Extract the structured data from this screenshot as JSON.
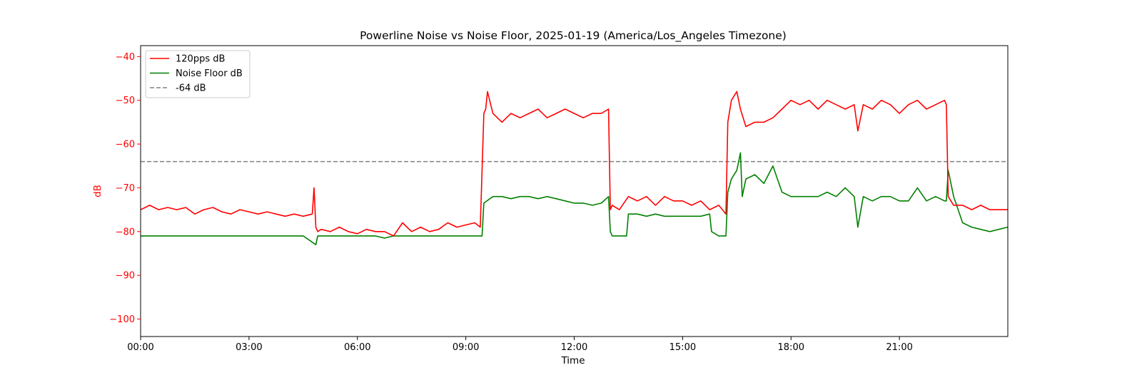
{
  "chart_data": {
    "type": "line",
    "title": "Powerline Noise vs Noise Floor, 2025-01-19 (America/Los_Angeles Timezone)",
    "xlabel": "Time",
    "ylabel": "dB",
    "x_unit": "hours",
    "xlim": [
      0,
      24
    ],
    "ylim": [
      -104,
      -37.5
    ],
    "xticks": [
      {
        "value": 0,
        "label": "00:00"
      },
      {
        "value": 3,
        "label": "03:00"
      },
      {
        "value": 6,
        "label": "06:00"
      },
      {
        "value": 9,
        "label": "09:00"
      },
      {
        "value": 12,
        "label": "12:00"
      },
      {
        "value": 15,
        "label": "15:00"
      },
      {
        "value": 18,
        "label": "18:00"
      },
      {
        "value": 21,
        "label": "21:00"
      }
    ],
    "yticks": [
      {
        "value": -40,
        "label": "−40"
      },
      {
        "value": -50,
        "label": "−50"
      },
      {
        "value": -60,
        "label": "−60"
      },
      {
        "value": -70,
        "label": "−70"
      },
      {
        "value": -80,
        "label": "−80"
      },
      {
        "value": -90,
        "label": "−90"
      },
      {
        "value": -100,
        "label": "−100"
      }
    ],
    "legend_position": "top-left",
    "grid": false,
    "series": [
      {
        "name": "120pps dB",
        "color": "#ff0000",
        "x": [
          0,
          0.25,
          0.5,
          0.75,
          1.0,
          1.25,
          1.5,
          1.75,
          2.0,
          2.25,
          2.5,
          2.75,
          3.0,
          3.25,
          3.5,
          3.75,
          4.0,
          4.25,
          4.5,
          4.75,
          4.8,
          4.85,
          4.9,
          5.0,
          5.25,
          5.5,
          5.75,
          6.0,
          6.25,
          6.5,
          6.75,
          7.0,
          7.25,
          7.5,
          7.75,
          8.0,
          8.25,
          8.5,
          8.75,
          9.0,
          9.25,
          9.4,
          9.5,
          9.55,
          9.6,
          9.75,
          10.0,
          10.25,
          10.5,
          10.75,
          11.0,
          11.25,
          11.5,
          11.75,
          12.0,
          12.25,
          12.5,
          12.75,
          12.95,
          13.0,
          13.05,
          13.25,
          13.5,
          13.75,
          14.0,
          14.25,
          14.5,
          14.75,
          15.0,
          15.25,
          15.5,
          15.75,
          16.0,
          16.2,
          16.25,
          16.35,
          16.5,
          16.6,
          16.75,
          17.0,
          17.25,
          17.5,
          17.75,
          18.0,
          18.25,
          18.5,
          18.75,
          19.0,
          19.25,
          19.5,
          19.75,
          19.85,
          20.0,
          20.25,
          20.5,
          20.75,
          21.0,
          21.25,
          21.5,
          21.75,
          22.0,
          22.25,
          22.3,
          22.35,
          22.5,
          22.75,
          23.0,
          23.25,
          23.5,
          23.75,
          24.0
        ],
        "y": [
          -75,
          -74,
          -75,
          -74.5,
          -75,
          -74.5,
          -76,
          -75,
          -74.5,
          -75.5,
          -76,
          -75,
          -75.5,
          -76,
          -75.5,
          -76,
          -76.5,
          -76,
          -76.5,
          -76,
          -70,
          -79,
          -80,
          -79.5,
          -80,
          -79,
          -80,
          -80.5,
          -79.5,
          -80,
          -80,
          -81,
          -78,
          -80,
          -79,
          -80,
          -79.5,
          -78,
          -79,
          -78.5,
          -78,
          -79,
          -53,
          -52,
          -48,
          -53,
          -55,
          -53,
          -54,
          -53,
          -52,
          -54,
          -53,
          -52,
          -53,
          -54,
          -53,
          -53,
          -52,
          -75,
          -74,
          -75,
          -72,
          -73,
          -72,
          -74,
          -72,
          -73,
          -73,
          -74,
          -73,
          -75,
          -74,
          -76,
          -55,
          -50,
          -48,
          -52,
          -56,
          -55,
          -55,
          -54,
          -52,
          -50,
          -51,
          -50,
          -52,
          -50,
          -51,
          -52,
          -51,
          -57,
          -51,
          -52,
          -50,
          -51,
          -53,
          -51,
          -50,
          -52,
          -51,
          -50,
          -51,
          -72,
          -74,
          -74,
          -75,
          -74,
          -75,
          -75,
          -75
        ]
      },
      {
        "name": "Noise Floor dB",
        "color": "#008000",
        "x": [
          0,
          0.25,
          0.5,
          0.75,
          1.0,
          1.5,
          2.0,
          2.5,
          3.0,
          3.5,
          4.0,
          4.5,
          4.85,
          4.9,
          5.0,
          5.5,
          6.0,
          6.5,
          6.75,
          7.0,
          7.25,
          7.5,
          7.75,
          8.0,
          8.25,
          8.5,
          8.75,
          9.0,
          9.25,
          9.45,
          9.5,
          9.75,
          10.0,
          10.25,
          10.5,
          10.75,
          11.0,
          11.25,
          11.5,
          11.75,
          12.0,
          12.25,
          12.5,
          12.75,
          12.95,
          13.0,
          13.05,
          13.25,
          13.45,
          13.5,
          13.75,
          14.0,
          14.25,
          14.5,
          14.75,
          15.0,
          15.25,
          15.5,
          15.75,
          15.8,
          16.0,
          16.2,
          16.25,
          16.35,
          16.5,
          16.6,
          16.65,
          16.75,
          17.0,
          17.25,
          17.5,
          17.75,
          18.0,
          18.25,
          18.5,
          18.75,
          19.0,
          19.25,
          19.5,
          19.75,
          19.85,
          20.0,
          20.25,
          20.5,
          20.75,
          21.0,
          21.25,
          21.5,
          21.75,
          22.0,
          22.25,
          22.3,
          22.35,
          22.5,
          22.75,
          23.0,
          23.25,
          23.5,
          23.75,
          24.0
        ],
        "y": [
          -81,
          -81,
          -81,
          -81,
          -81,
          -81,
          -81,
          -81,
          -81,
          -81,
          -81,
          -81,
          -83,
          -81,
          -81,
          -81,
          -81,
          -81,
          -81.5,
          -81,
          -81,
          -81,
          -81,
          -81,
          -81,
          -81,
          -81,
          -81,
          -81,
          -81,
          -73.5,
          -72,
          -72,
          -72.5,
          -72,
          -72,
          -72.5,
          -72,
          -72.5,
          -73,
          -73.5,
          -73.5,
          -74,
          -73.5,
          -72,
          -80,
          -81,
          -81,
          -81,
          -76,
          -76,
          -76.5,
          -76,
          -76.5,
          -76.5,
          -76.5,
          -76.5,
          -76.5,
          -76,
          -80,
          -81,
          -81,
          -71,
          -68,
          -66,
          -62,
          -72,
          -68,
          -67,
          -69,
          -65,
          -71,
          -72,
          -72,
          -72,
          -72,
          -71,
          -72,
          -70,
          -72,
          -79,
          -72,
          -73,
          -72,
          -72,
          -73,
          -73,
          -70,
          -73,
          -72,
          -73,
          -73,
          -66,
          -72,
          -78,
          -79,
          -79.5,
          -80,
          -79.5,
          -79
        ]
      },
      {
        "name": "-64 dB",
        "color": "#808080",
        "dashed": true,
        "x": [
          0,
          24
        ],
        "y": [
          -64,
          -64
        ]
      }
    ]
  }
}
